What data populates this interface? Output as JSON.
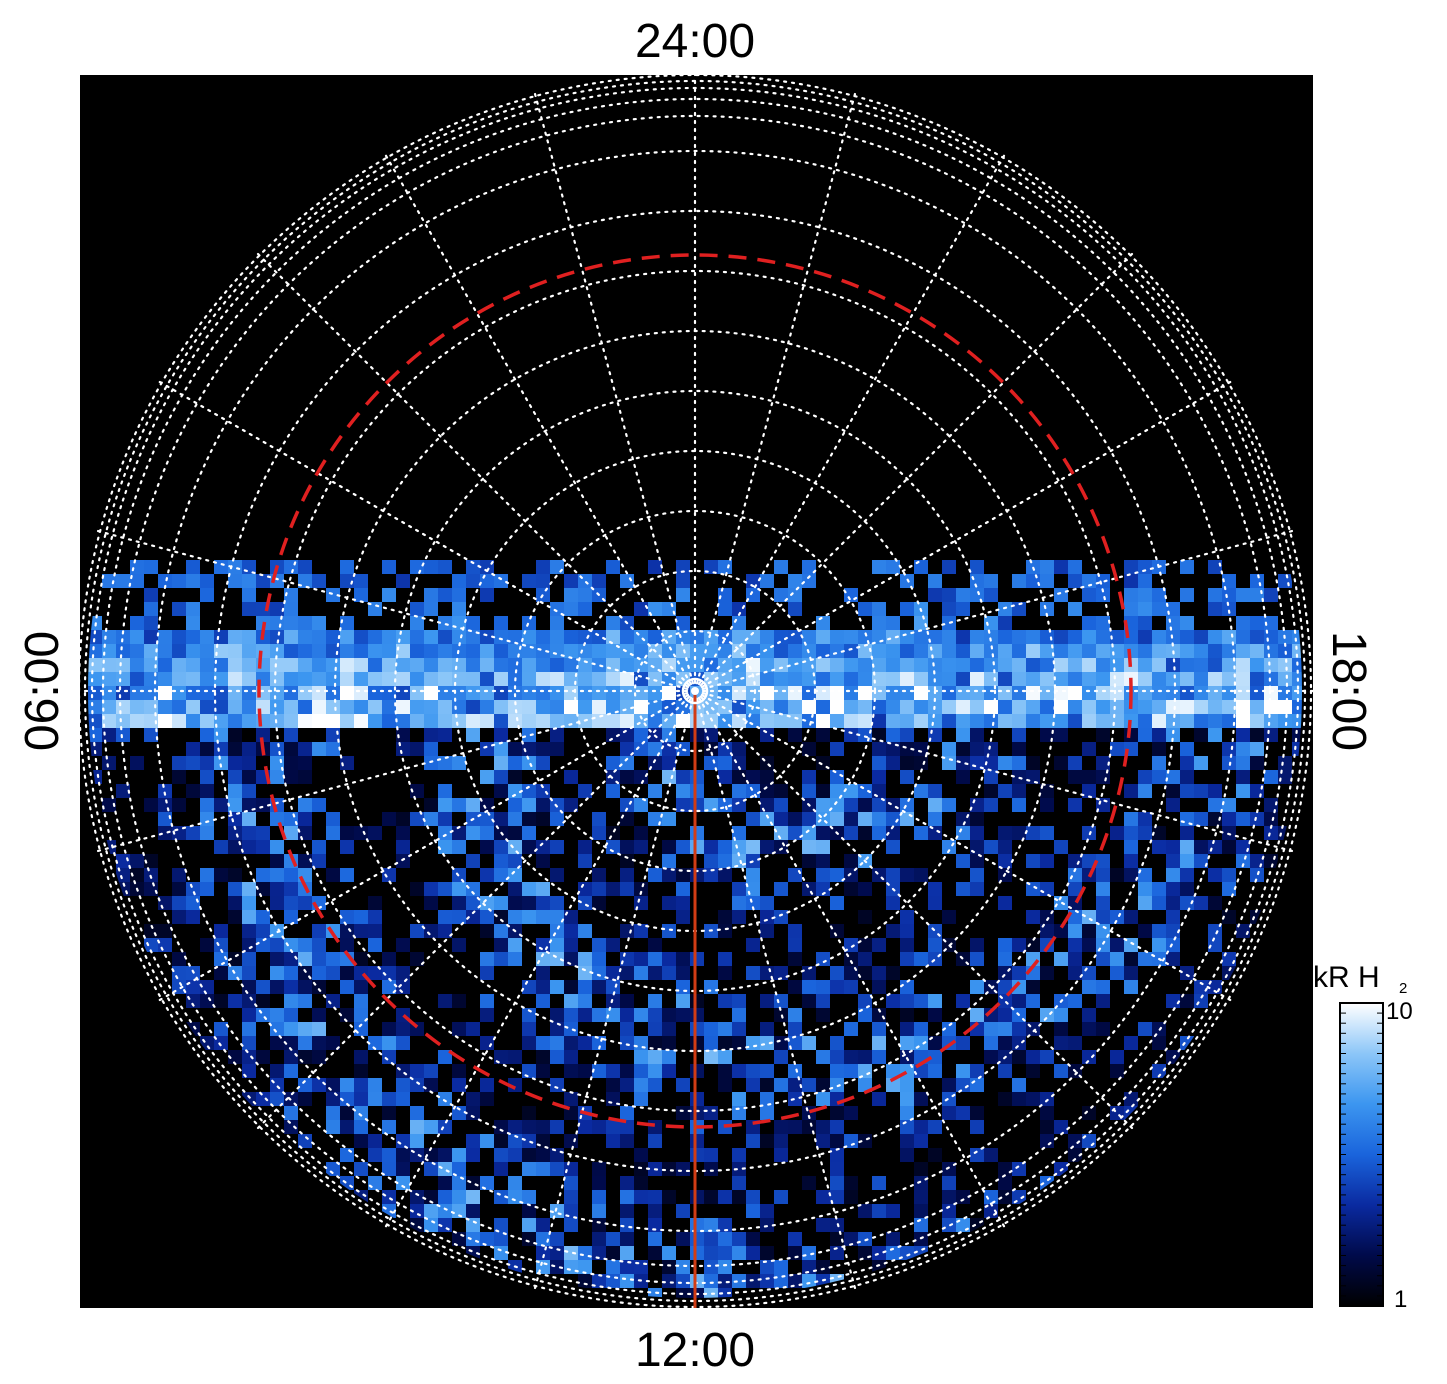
{
  "chart_data": {
    "type": "heatmap",
    "projection": "polar",
    "local_time_labels": {
      "top": "24:00",
      "bottom": "12:00",
      "left": "06:00",
      "right": "18:00"
    },
    "colorbar": {
      "title": "kR H",
      "title_subscript": "2",
      "scale": "log",
      "min": 1,
      "max": 10,
      "min_label": "1",
      "max_label": "10",
      "colors": [
        "#000000",
        "#000a4a",
        "#0a2aa0",
        "#1a64dc",
        "#3c96f0",
        "#8cc6f8",
        "#ffffff"
      ]
    },
    "grid": true,
    "grid_color": "#ffffff",
    "background_color": "#000000",
    "reference_circle_color": "#e02020",
    "meridian_color": "#d23c14",
    "emission_color_range": [
      "#000000",
      "#ffffff"
    ]
  }
}
